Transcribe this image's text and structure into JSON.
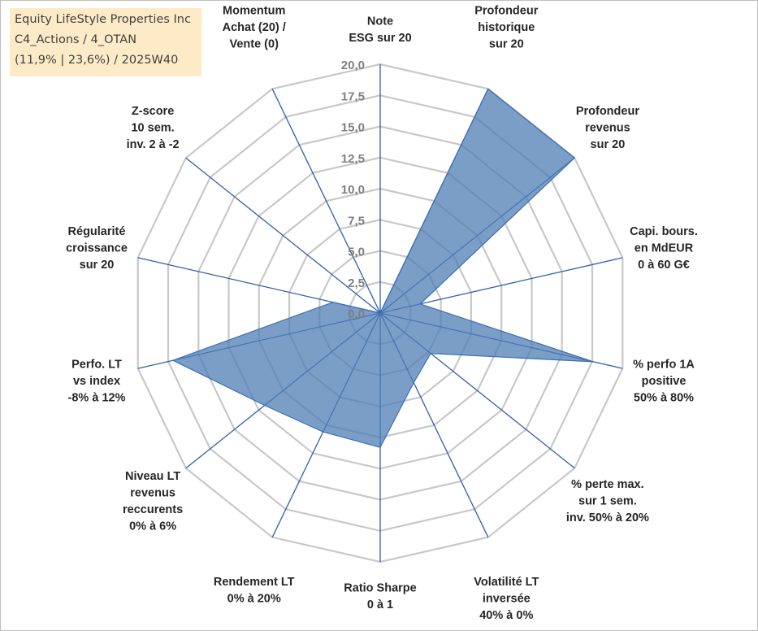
{
  "title_box": {
    "line1": "Equity LifeStyle Properties Inc",
    "line2": "C4_Actions / 4_OTAN",
    "line3": "(11,9% | 23,6%) / 2025W40"
  },
  "colors": {
    "grid": "#c8c8c8",
    "spoke": "#2e5fa8",
    "fill": "#4f7db4",
    "fill_opacity": 0.75,
    "outline": "#3b6fb5",
    "title_bg": "#fdebc8"
  },
  "chart_data": {
    "type": "radar",
    "rmax": 20,
    "ticks": [
      "0,0",
      "2,5",
      "5,0",
      "7,5",
      "10,0",
      "12,5",
      "15,0",
      "17,5",
      "20,0"
    ],
    "tick_values": [
      0,
      2.5,
      5,
      7.5,
      10,
      12.5,
      15,
      17.5,
      20
    ],
    "grid": true,
    "axes": [
      "Note\nESG sur 20",
      "Profondeur\nhistorique\nsur 20",
      "Profondeur\nrevenus\nsur 20",
      "Capi. bours.\nen MdEUR\n0 à 60 G€",
      "% perfo 1A\npositive\n50% à 80%",
      "% perte max.\nsur 1 sem.\ninv. 50% à 20%",
      "Volatilité LT\ninversée\n40% à 0%",
      "Ratio Sharpe\n0 à 1",
      "Rendement LT\n0% à 20%",
      "Niveau LT\nrevenus\nreccurents\n0% à 6%",
      "Perfo. LT\nvs index\n-8% à 12%",
      "Régularité\ncroissance\nsur 20",
      "Z-score\n10 sem.\ninv. 2 à -2",
      "Momentum\nAchat (20) /\nVente (0)"
    ],
    "values": [
      0,
      20,
      20,
      3.3,
      17.6,
      5.2,
      6.2,
      10.8,
      10.6,
      11.9,
      17.1,
      3.9,
      0,
      0
    ]
  }
}
